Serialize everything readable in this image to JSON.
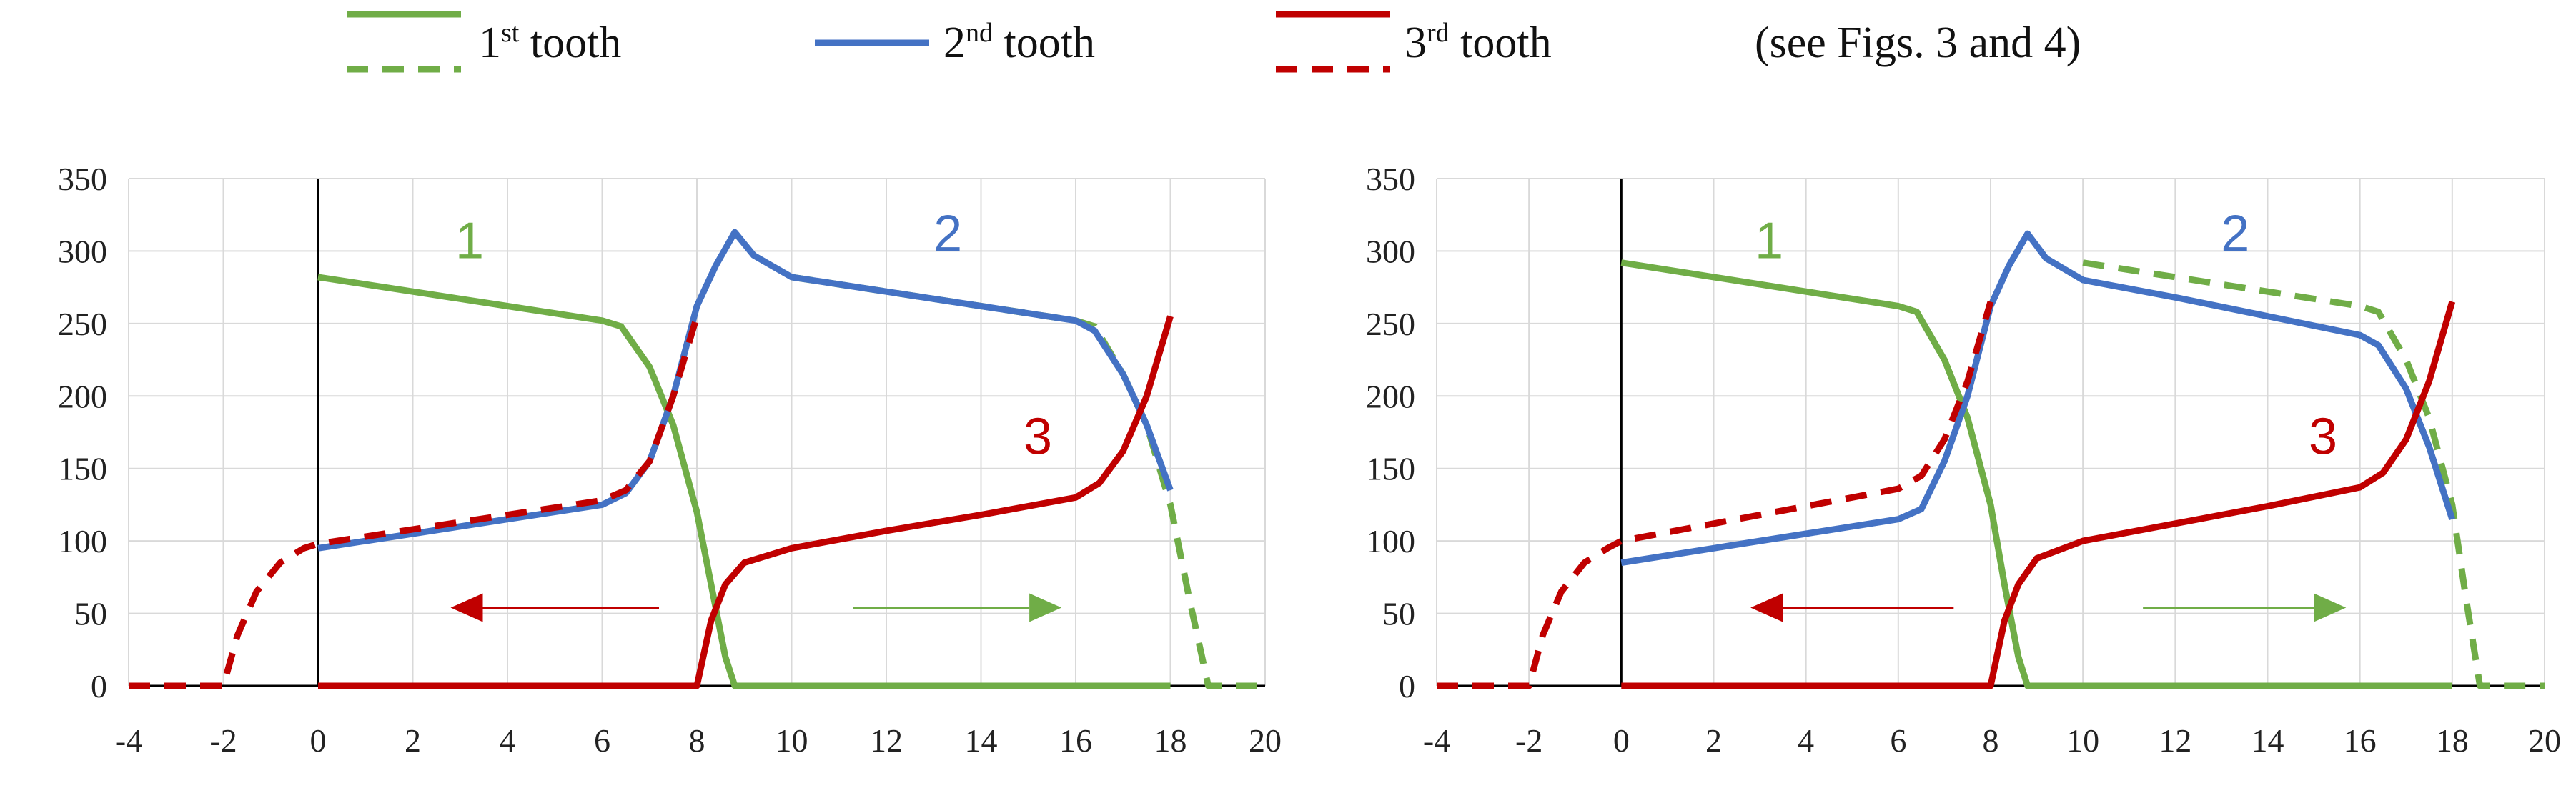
{
  "legend": {
    "items": [
      {
        "prefix": "1",
        "sup": "st",
        "suffix": " tooth",
        "color": "#70ad47"
      },
      {
        "prefix": "2",
        "sup": "nd",
        "suffix": " tooth",
        "color": "#4472c4"
      },
      {
        "prefix": "3",
        "sup": "rd",
        "suffix": " tooth",
        "color": "#c00000"
      }
    ],
    "note": "(see Figs. 3 and 4)"
  },
  "colors": {
    "green": "#70ad47",
    "blue": "#4472c4",
    "red": "#c00000",
    "grid": "#d9d9d9",
    "axis": "#000000"
  },
  "chart_data": [
    {
      "type": "line",
      "xlim": [
        -4,
        20
      ],
      "ylim": [
        0,
        350
      ],
      "xticks": [
        -4,
        -2,
        0,
        2,
        4,
        6,
        8,
        10,
        12,
        14,
        16,
        18,
        20
      ],
      "yticks": [
        0,
        50,
        100,
        150,
        200,
        250,
        300,
        350
      ],
      "grid": true,
      "series": [
        {
          "name": "1st tooth",
          "color": "green",
          "style": "solid",
          "x": [
            0,
            2,
            4,
            6,
            6.4,
            7,
            7.5,
            8,
            8.3,
            8.6,
            8.8,
            18
          ],
          "y": [
            282,
            272,
            262,
            252,
            248,
            220,
            180,
            120,
            70,
            20,
            0,
            0
          ]
        },
        {
          "name": "1st tooth",
          "color": "green",
          "style": "dashed",
          "x": [
            10,
            12,
            14,
            16,
            16.4,
            17,
            17.5,
            18,
            18.4,
            18.8,
            20
          ],
          "y": [
            282,
            272,
            262,
            252,
            248,
            215,
            180,
            125,
            60,
            0,
            0
          ]
        },
        {
          "name": "2nd tooth",
          "color": "blue",
          "style": "solid",
          "x": [
            0,
            2,
            4,
            6,
            6.5,
            7,
            7.5,
            8,
            8.4,
            8.8,
            9.2,
            10,
            12,
            14,
            16,
            16.4,
            17,
            17.5,
            18
          ],
          "y": [
            95,
            105,
            115,
            125,
            133,
            155,
            200,
            262,
            290,
            313,
            297,
            282,
            272,
            262,
            252,
            245,
            215,
            180,
            135
          ]
        },
        {
          "name": "3rd tooth",
          "color": "red",
          "style": "solid",
          "x": [
            0,
            8,
            8.3,
            8.6,
            9,
            10,
            12,
            14,
            16,
            16.5,
            17,
            17.5,
            18
          ],
          "y": [
            0,
            0,
            45,
            70,
            85,
            95,
            107,
            118,
            130,
            140,
            162,
            200,
            255
          ]
        },
        {
          "name": "3rd tooth",
          "color": "red",
          "style": "dashed",
          "x": [
            -4,
            -2,
            -1.7,
            -1.3,
            -0.8,
            -0.3,
            0,
            2,
            4,
            6,
            6.5,
            7,
            7.5,
            8
          ],
          "y": [
            0,
            0,
            35,
            65,
            85,
            95,
            98,
            108,
            118,
            128,
            135,
            155,
            200,
            255
          ]
        }
      ],
      "labels": [
        {
          "text": "1",
          "x": 3.2,
          "y": 295,
          "color": "green"
        },
        {
          "text": "2",
          "x": 13.3,
          "y": 300,
          "color": "blue"
        },
        {
          "text": "3",
          "x": 15.2,
          "y": 160,
          "color": "red"
        }
      ],
      "arrows": [
        {
          "color": "red",
          "x1": 7.2,
          "x2": 2.8,
          "y": 54
        },
        {
          "color": "green",
          "x1": 11.3,
          "x2": 15.7,
          "y": 54
        }
      ]
    },
    {
      "type": "line",
      "xlim": [
        -4,
        20
      ],
      "ylim": [
        0,
        350
      ],
      "xticks": [
        -4,
        -2,
        0,
        2,
        4,
        6,
        8,
        10,
        12,
        14,
        16,
        18,
        20
      ],
      "yticks": [
        0,
        50,
        100,
        150,
        200,
        250,
        300,
        350
      ],
      "grid": true,
      "series": [
        {
          "name": "1st tooth",
          "color": "green",
          "style": "solid",
          "x": [
            0,
            2,
            4,
            6,
            6.4,
            7,
            7.5,
            8,
            8.3,
            8.6,
            8.8,
            18
          ],
          "y": [
            292,
            282,
            272,
            262,
            258,
            225,
            185,
            125,
            70,
            20,
            0,
            0
          ]
        },
        {
          "name": "1st tooth",
          "color": "green",
          "style": "dashed",
          "x": [
            10,
            12,
            14,
            16,
            16.4,
            17,
            17.5,
            18,
            18.3,
            18.6,
            20
          ],
          "y": [
            292,
            282,
            272,
            262,
            258,
            225,
            185,
            125,
            60,
            0,
            0
          ]
        },
        {
          "name": "2nd tooth",
          "color": "blue",
          "style": "solid",
          "x": [
            0,
            2,
            4,
            6,
            6.5,
            7,
            7.5,
            8,
            8.4,
            8.8,
            9.2,
            10,
            12,
            14,
            16,
            16.4,
            17,
            17.5,
            18
          ],
          "y": [
            85,
            95,
            105,
            115,
            122,
            155,
            200,
            262,
            290,
            312,
            295,
            280,
            268,
            255,
            242,
            235,
            205,
            165,
            115
          ]
        },
        {
          "name": "3rd tooth",
          "color": "red",
          "style": "solid",
          "x": [
            0,
            8,
            8.3,
            8.6,
            9,
            10,
            12,
            14,
            16,
            16.5,
            17,
            17.5,
            18
          ],
          "y": [
            0,
            0,
            45,
            70,
            88,
            100,
            112,
            124,
            137,
            147,
            170,
            210,
            265
          ]
        },
        {
          "name": "3rd tooth",
          "color": "red",
          "style": "dashed",
          "x": [
            -4,
            -2,
            -1.7,
            -1.3,
            -0.8,
            -0.3,
            0,
            2,
            4,
            6,
            6.5,
            7,
            7.5,
            8
          ],
          "y": [
            0,
            0,
            35,
            65,
            85,
            95,
            100,
            112,
            124,
            136,
            145,
            170,
            210,
            265
          ]
        }
      ],
      "labels": [
        {
          "text": "1",
          "x": 3.2,
          "y": 295,
          "color": "green"
        },
        {
          "text": "2",
          "x": 13.3,
          "y": 300,
          "color": "blue"
        },
        {
          "text": "3",
          "x": 15.2,
          "y": 160,
          "color": "red"
        }
      ],
      "arrows": [
        {
          "color": "red",
          "x1": 7.2,
          "x2": 2.8,
          "y": 54
        },
        {
          "color": "green",
          "x1": 11.3,
          "x2": 15.7,
          "y": 54
        }
      ]
    }
  ]
}
